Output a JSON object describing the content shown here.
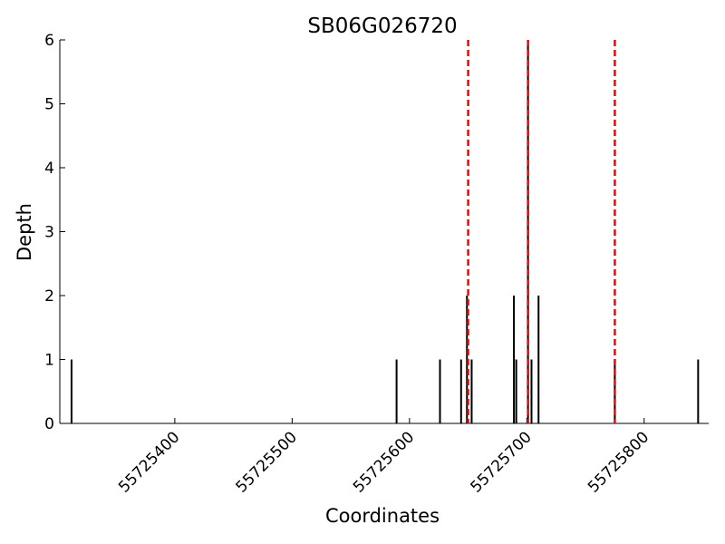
{
  "chart_data": {
    "type": "bar",
    "title": "SB06G026720",
    "x_label": "Coordinates",
    "y_label": "Depth",
    "x": [
      55725312,
      55725589,
      55725626,
      55725644,
      55725649,
      55725653,
      55725689,
      55725691,
      55725701,
      55725704,
      55725710,
      55725775,
      55725846
    ],
    "values": [
      1,
      1,
      1,
      1,
      2,
      1,
      2,
      1,
      6,
      1,
      2,
      1,
      1
    ],
    "color": "#000000",
    "vlines": [
      55725650,
      55725701,
      55725775
    ],
    "vline_color": "#ff0000",
    "xlim": [
      55725302,
      55725855
    ],
    "xticks": [
      55725400,
      55725500,
      55725600,
      55725700,
      55725800
    ],
    "ylim": [
      0,
      6
    ],
    "yticks": [
      0,
      1,
      2,
      3,
      4,
      5,
      6
    ]
  }
}
